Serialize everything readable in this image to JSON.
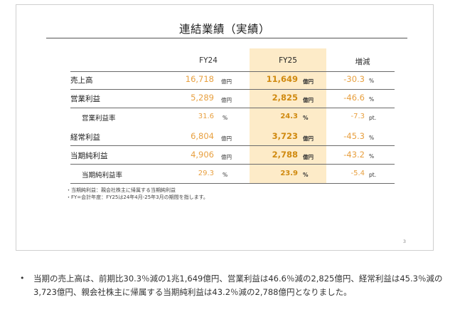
{
  "slide": {
    "title": "連結業績（実績）",
    "page_number": "3",
    "columns": [
      "FY24",
      "FY25",
      "増減"
    ],
    "rows": [
      {
        "label": "売上高",
        "fy24": "16,718",
        "fy24_unit": "億円",
        "fy25": "11,649",
        "fy25_unit": "億円",
        "diff": "-30.3",
        "diff_unit": "%"
      },
      {
        "label": "営業利益",
        "fy24": "5,289",
        "fy24_unit": "億円",
        "fy25": "2,825",
        "fy25_unit": "億円",
        "diff": "-46.6",
        "diff_unit": "%"
      },
      {
        "label": "営業利益率",
        "fy24": "31.6",
        "fy24_unit": "%",
        "fy25": "24.3",
        "fy25_unit": "%",
        "diff": "-7.3",
        "diff_unit": "pt."
      },
      {
        "label": "経常利益",
        "fy24": "6,804",
        "fy24_unit": "億円",
        "fy25": "3,723",
        "fy25_unit": "億円",
        "diff": "-45.3",
        "diff_unit": "%"
      },
      {
        "label": "当期純利益",
        "fy24": "4,906",
        "fy24_unit": "億円",
        "fy25": "2,788",
        "fy25_unit": "億円",
        "diff": "-43.2",
        "diff_unit": "%"
      },
      {
        "label": "当期純利益率",
        "fy24": "29.3",
        "fy24_unit": "%",
        "fy25": "23.9",
        "fy25_unit": "%",
        "diff": "-5.4",
        "diff_unit": "pt."
      }
    ],
    "notes": [
      "・当期純利益：親会社株主に帰属する当期純利益",
      "・FY=会計年度：FY25は24年4月-25年3月の期間を指します。"
    ]
  },
  "caption": {
    "bullet": "•",
    "text": "当期の売上高は、前期比30.3％減の1兆1,649億円、営業利益は46.6％減の2,825億円、経常利益は45.3％減の3,723億円、親会社株主に帰属する当期純利益は43.2％減の2,788億円となりました。"
  }
}
